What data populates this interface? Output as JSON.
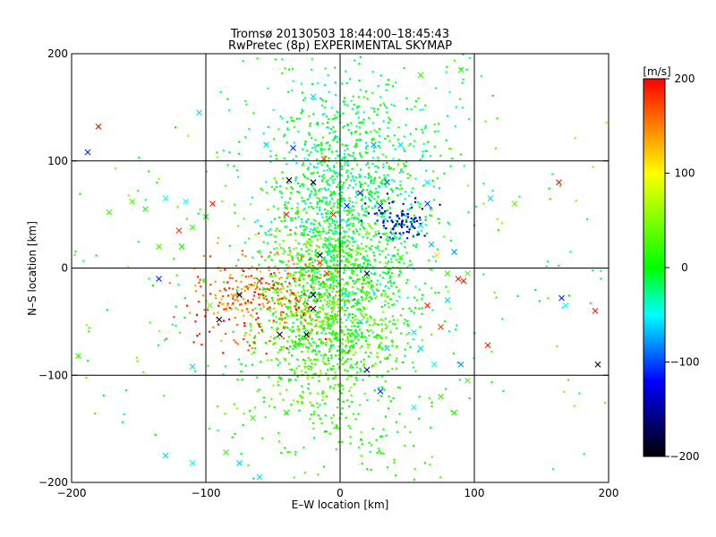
{
  "chart_data": {
    "type": "scatter",
    "title": "Tromsø 20130503 18:44:00–18:45:43",
    "subtitle": "RwPretec (8p) EXPERIMENTAL SKYMAP",
    "xlabel": "E–W location [km]",
    "ylabel": "N–S location [km]",
    "xlim": [
      -200,
      200
    ],
    "ylim": [
      -200,
      200
    ],
    "xticks": [
      -200,
      -100,
      0,
      100,
      200
    ],
    "yticks": [
      -200,
      -100,
      0,
      100,
      200
    ],
    "xtick_labels": [
      "−200",
      "−100",
      "0",
      "100",
      "200"
    ],
    "ytick_labels": [
      "−200",
      "−100",
      "0",
      "100",
      "200"
    ],
    "grid": true,
    "colorbar": {
      "label": "[m/s]",
      "range": [
        -200,
        200
      ],
      "ticks": [
        200,
        100,
        0,
        -100,
        -200
      ],
      "tick_labels": [
        "200",
        "100",
        "0",
        "−100",
        "−200"
      ],
      "colors": [
        "#ff0000",
        "#ffff00",
        "#00ff00",
        "#00ffff",
        "#0000ff",
        "#000000"
      ]
    },
    "marker_types": [
      "dot",
      "cross"
    ],
    "points": [
      {
        "x": -180,
        "y": 132,
        "v": 190,
        "m": "cross"
      },
      {
        "x": -188,
        "y": 108,
        "v": -110,
        "m": "cross"
      },
      {
        "x": -105,
        "y": 145,
        "v": -60,
        "m": "cross"
      },
      {
        "x": -155,
        "y": 62,
        "v": 30,
        "m": "cross"
      },
      {
        "x": -172,
        "y": 52,
        "v": 20,
        "m": "cross"
      },
      {
        "x": -145,
        "y": 55,
        "v": 10,
        "m": "cross"
      },
      {
        "x": -120,
        "y": 35,
        "v": 180,
        "m": "cross"
      },
      {
        "x": -110,
        "y": 38,
        "v": 20,
        "m": "cross"
      },
      {
        "x": -135,
        "y": 20,
        "v": 30,
        "m": "cross"
      },
      {
        "x": -118,
        "y": 20,
        "v": 10,
        "m": "cross"
      },
      {
        "x": -100,
        "y": 48,
        "v": 0,
        "m": "cross"
      },
      {
        "x": -95,
        "y": 60,
        "v": 190,
        "m": "cross"
      },
      {
        "x": -115,
        "y": 62,
        "v": -50,
        "m": "cross"
      },
      {
        "x": -130,
        "y": 65,
        "v": -50,
        "m": "cross"
      },
      {
        "x": -135,
        "y": -10,
        "v": -110,
        "m": "cross"
      },
      {
        "x": -90,
        "y": -48,
        "v": -190,
        "m": "cross"
      },
      {
        "x": -97,
        "y": -35,
        "v": 40,
        "m": "cross"
      },
      {
        "x": -110,
        "y": -92,
        "v": -60,
        "m": "cross"
      },
      {
        "x": -195,
        "y": -82,
        "v": 20,
        "m": "cross"
      },
      {
        "x": -130,
        "y": -175,
        "v": -60,
        "m": "cross"
      },
      {
        "x": -110,
        "y": -182,
        "v": -50,
        "m": "cross"
      },
      {
        "x": -85,
        "y": -172,
        "v": 10,
        "m": "cross"
      },
      {
        "x": -75,
        "y": -182,
        "v": -60,
        "m": "cross"
      },
      {
        "x": -65,
        "y": -140,
        "v": 20,
        "m": "cross"
      },
      {
        "x": -40,
        "y": -135,
        "v": 0,
        "m": "cross"
      },
      {
        "x": -60,
        "y": -195,
        "v": -60,
        "m": "cross"
      },
      {
        "x": -75,
        "y": -25,
        "v": -190,
        "m": "cross"
      },
      {
        "x": -60,
        "y": -12,
        "v": 190,
        "m": "cross"
      },
      {
        "x": -45,
        "y": -62,
        "v": -190,
        "m": "cross"
      },
      {
        "x": -25,
        "y": -62,
        "v": -190,
        "m": "cross"
      },
      {
        "x": -20,
        "y": -25,
        "v": -190,
        "m": "cross"
      },
      {
        "x": -15,
        "y": 12,
        "v": -190,
        "m": "cross"
      },
      {
        "x": -15,
        "y": 5,
        "v": 180,
        "m": "cross"
      },
      {
        "x": -10,
        "y": -5,
        "v": 180,
        "m": "cross"
      },
      {
        "x": -20,
        "y": -38,
        "v": -190,
        "m": "cross"
      },
      {
        "x": -5,
        "y": 50,
        "v": 190,
        "m": "cross"
      },
      {
        "x": -40,
        "y": 50,
        "v": 190,
        "m": "cross"
      },
      {
        "x": -12,
        "y": 102,
        "v": 180,
        "m": "cross"
      },
      {
        "x": -38,
        "y": 82,
        "v": -190,
        "m": "cross"
      },
      {
        "x": -35,
        "y": 112,
        "v": -110,
        "m": "cross"
      },
      {
        "x": -20,
        "y": 80,
        "v": -190,
        "m": "cross"
      },
      {
        "x": 5,
        "y": 58,
        "v": -110,
        "m": "cross"
      },
      {
        "x": 15,
        "y": 70,
        "v": -110,
        "m": "cross"
      },
      {
        "x": 30,
        "y": 58,
        "v": -110,
        "m": "cross"
      },
      {
        "x": 35,
        "y": 80,
        "v": -90,
        "m": "cross"
      },
      {
        "x": 25,
        "y": 115,
        "v": -80,
        "m": "cross"
      },
      {
        "x": 45,
        "y": 115,
        "v": -60,
        "m": "cross"
      },
      {
        "x": 65,
        "y": 60,
        "v": -100,
        "m": "cross"
      },
      {
        "x": 60,
        "y": 40,
        "v": -60,
        "m": "cross"
      },
      {
        "x": 65,
        "y": 80,
        "v": -50,
        "m": "cross"
      },
      {
        "x": 68,
        "y": 22,
        "v": -70,
        "m": "cross"
      },
      {
        "x": 72,
        "y": 12,
        "v": 110,
        "m": "cross"
      },
      {
        "x": 80,
        "y": -5,
        "v": 20,
        "m": "cross"
      },
      {
        "x": 85,
        "y": 15,
        "v": -80,
        "m": "cross"
      },
      {
        "x": 88,
        "y": -10,
        "v": 190,
        "m": "cross"
      },
      {
        "x": 92,
        "y": -12,
        "v": 190,
        "m": "cross"
      },
      {
        "x": 80,
        "y": -30,
        "v": -60,
        "m": "cross"
      },
      {
        "x": 65,
        "y": -35,
        "v": 190,
        "m": "cross"
      },
      {
        "x": 75,
        "y": -55,
        "v": 180,
        "m": "cross"
      },
      {
        "x": 55,
        "y": -60,
        "v": -60,
        "m": "cross"
      },
      {
        "x": 60,
        "y": -75,
        "v": -60,
        "m": "cross"
      },
      {
        "x": 70,
        "y": -90,
        "v": -50,
        "m": "cross"
      },
      {
        "x": 90,
        "y": -90,
        "v": -80,
        "m": "cross"
      },
      {
        "x": 95,
        "y": -105,
        "v": 20,
        "m": "cross"
      },
      {
        "x": 75,
        "y": -120,
        "v": 20,
        "m": "cross"
      },
      {
        "x": 85,
        "y": -135,
        "v": 10,
        "m": "cross"
      },
      {
        "x": 55,
        "y": -130,
        "v": -50,
        "m": "cross"
      },
      {
        "x": 30,
        "y": -115,
        "v": -110,
        "m": "cross"
      },
      {
        "x": 20,
        "y": -95,
        "v": -150,
        "m": "cross"
      },
      {
        "x": 35,
        "y": -75,
        "v": -60,
        "m": "cross"
      },
      {
        "x": 15,
        "y": -50,
        "v": -60,
        "m": "cross"
      },
      {
        "x": 20,
        "y": -5,
        "v": -190,
        "m": "cross"
      },
      {
        "x": 5,
        "y": -25,
        "v": -60,
        "m": "cross"
      },
      {
        "x": 110,
        "y": -72,
        "v": 190,
        "m": "cross"
      },
      {
        "x": 112,
        "y": 65,
        "v": -60,
        "m": "cross"
      },
      {
        "x": 130,
        "y": 60,
        "v": 30,
        "m": "cross"
      },
      {
        "x": 163,
        "y": 80,
        "v": 190,
        "m": "cross"
      },
      {
        "x": 165,
        "y": -28,
        "v": -110,
        "m": "cross"
      },
      {
        "x": 168,
        "y": -35,
        "v": -50,
        "m": "cross"
      },
      {
        "x": 190,
        "y": -40,
        "v": 190,
        "m": "cross"
      },
      {
        "x": 192,
        "y": -90,
        "v": -190,
        "m": "cross"
      },
      {
        "x": 95,
        "y": -5,
        "v": 30,
        "m": "cross"
      },
      {
        "x": 45,
        "y": 10,
        "v": 20,
        "m": "cross"
      },
      {
        "x": 60,
        "y": 180,
        "v": 20,
        "m": "cross"
      },
      {
        "x": 90,
        "y": 185,
        "v": 20,
        "m": "cross"
      },
      {
        "x": -20,
        "y": 160,
        "v": -60,
        "m": "cross"
      },
      {
        "x": -55,
        "y": 115,
        "v": -60,
        "m": "cross"
      }
    ]
  }
}
